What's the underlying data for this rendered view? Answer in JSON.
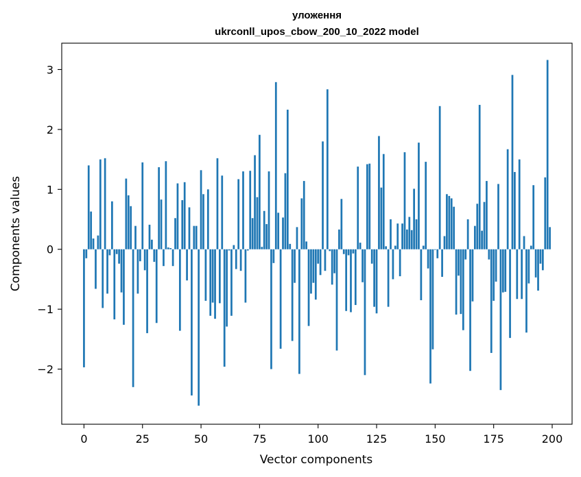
{
  "chart_data": {
    "type": "bar",
    "title": "уложення",
    "subtitle": "ukrconll_upos_cbow_200_10_2022 model",
    "xlabel": "Vector components",
    "ylabel": "Components values",
    "xlim": [
      -9.5,
      208.5
    ],
    "ylim": [
      -2.92,
      3.44
    ],
    "xticks": [
      0,
      25,
      50,
      75,
      100,
      125,
      150,
      175,
      200
    ],
    "xtick_labels": [
      "0",
      "25",
      "50",
      "75",
      "100",
      "125",
      "150",
      "175",
      "200"
    ],
    "yticks": [
      -2,
      -1,
      0,
      1,
      2,
      3
    ],
    "ytick_labels": [
      "−2",
      "−1",
      "0",
      "1",
      "2",
      "3"
    ],
    "grid": false,
    "legend": "none",
    "bar_color": "#1f77b4",
    "x": [
      0,
      1,
      2,
      3,
      4,
      5,
      6,
      7,
      8,
      9,
      10,
      11,
      12,
      13,
      14,
      15,
      16,
      17,
      18,
      19,
      20,
      21,
      22,
      23,
      24,
      25,
      26,
      27,
      28,
      29,
      30,
      31,
      32,
      33,
      34,
      35,
      36,
      37,
      38,
      39,
      40,
      41,
      42,
      43,
      44,
      45,
      46,
      47,
      48,
      49,
      50,
      51,
      52,
      53,
      54,
      55,
      56,
      57,
      58,
      59,
      60,
      61,
      62,
      63,
      64,
      65,
      66,
      67,
      68,
      69,
      70,
      71,
      72,
      73,
      74,
      75,
      76,
      77,
      78,
      79,
      80,
      81,
      82,
      83,
      84,
      85,
      86,
      87,
      88,
      89,
      90,
      91,
      92,
      93,
      94,
      95,
      96,
      97,
      98,
      99,
      100,
      101,
      102,
      103,
      104,
      105,
      106,
      107,
      108,
      109,
      110,
      111,
      112,
      113,
      114,
      115,
      116,
      117,
      118,
      119,
      120,
      121,
      122,
      123,
      124,
      125,
      126,
      127,
      128,
      129,
      130,
      131,
      132,
      133,
      134,
      135,
      136,
      137,
      138,
      139,
      140,
      141,
      142,
      143,
      144,
      145,
      146,
      147,
      148,
      149,
      150,
      151,
      152,
      153,
      154,
      155,
      156,
      157,
      158,
      159,
      160,
      161,
      162,
      163,
      164,
      165,
      166,
      167,
      168,
      169,
      170,
      171,
      172,
      173,
      174,
      175,
      176,
      177,
      178,
      179,
      180,
      181,
      182,
      183,
      184,
      185,
      186,
      187,
      188,
      189,
      190,
      191,
      192,
      193,
      194,
      195,
      196,
      197,
      198,
      199
    ],
    "values": [
      -1.97,
      -0.15,
      1.4,
      0.63,
      0.18,
      -0.66,
      0.23,
      1.5,
      -0.98,
      1.52,
      -0.74,
      -0.1,
      0.8,
      -1.17,
      -0.08,
      -0.24,
      -0.72,
      -1.26,
      1.18,
      0.9,
      0.72,
      -2.3,
      0.39,
      -0.74,
      -0.2,
      1.45,
      -0.35,
      -1.4,
      0.41,
      0.16,
      -0.21,
      -1.23,
      1.37,
      0.83,
      -0.28,
      1.47,
      0.03,
      0.02,
      -0.28,
      0.52,
      1.1,
      -1.36,
      0.82,
      1.12,
      -0.52,
      0.7,
      -2.44,
      0.39,
      0.39,
      -2.61,
      1.32,
      0.92,
      -0.86,
      1.0,
      -1.11,
      -0.89,
      -1.16,
      1.52,
      -0.9,
      1.23,
      -1.96,
      -1.29,
      -0.02,
      -1.11,
      0.07,
      -0.33,
      1.17,
      -0.36,
      1.3,
      -0.89,
      -0.02,
      1.31,
      0.52,
      1.57,
      0.87,
      1.91,
      0.04,
      0.64,
      0.42,
      1.3,
      -2.0,
      -0.23,
      2.79,
      0.61,
      -1.66,
      0.53,
      1.27,
      2.33,
      0.09,
      -1.53,
      -0.56,
      0.37,
      -2.08,
      0.85,
      1.14,
      0.13,
      -1.28,
      -0.74,
      -0.56,
      -0.84,
      -0.24,
      -0.43,
      1.8,
      -0.36,
      2.67,
      -0.03,
      -0.59,
      -0.4,
      -1.69,
      0.33,
      0.84,
      -0.08,
      -1.03,
      -0.1,
      -1.05,
      -0.07,
      -0.93,
      1.38,
      0.11,
      -0.55,
      -2.1,
      1.42,
      1.43,
      -0.24,
      -0.96,
      -1.07,
      1.89,
      1.03,
      1.59,
      0.05,
      -0.96,
      0.5,
      -0.5,
      0.06,
      0.43,
      -0.45,
      0.43,
      1.62,
      0.33,
      0.54,
      0.32,
      1.01,
      0.5,
      1.78,
      -0.85,
      0.06,
      1.46,
      -0.32,
      -2.24,
      -1.67,
      -0.01,
      -0.15,
      2.39,
      -0.46,
      0.22,
      0.92,
      0.89,
      0.85,
      0.71,
      -1.09,
      -0.44,
      -1.08,
      -1.35,
      -0.17,
      0.5,
      -2.03,
      -0.87,
      0.39,
      0.76,
      2.41,
      0.31,
      0.79,
      1.14,
      -0.17,
      -1.73,
      -0.86,
      -0.54,
      1.09,
      -2.35,
      -0.72,
      -0.71,
      1.67,
      -1.48,
      2.91,
      1.29,
      -0.83,
      1.5,
      -0.83,
      0.22,
      -1.39,
      -0.57,
      0.06,
      1.07,
      -0.47,
      -0.69,
      -0.24,
      -0.35,
      1.2,
      3.16,
      0.37
    ]
  }
}
